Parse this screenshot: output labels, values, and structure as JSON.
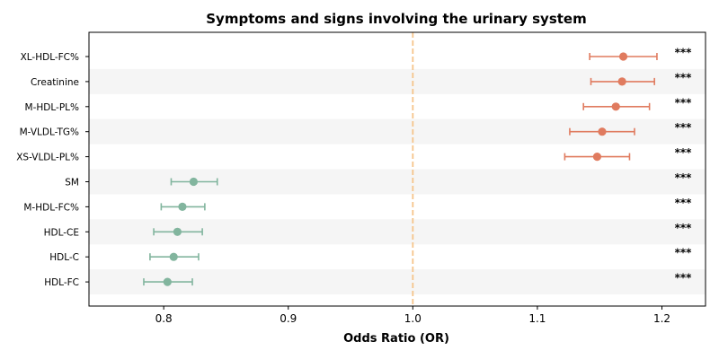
{
  "chart_data": {
    "type": "forest",
    "title": "Symptoms and signs involving the urinary system",
    "xlabel": "Odds Ratio (OR)",
    "ylabel": "",
    "xlim": [
      0.74,
      1.235
    ],
    "x_ticks": [
      0.8,
      0.9,
      1.0,
      1.1,
      1.2
    ],
    "x_tick_labels": [
      "0.8",
      "0.9",
      "1.0",
      "1.1",
      "1.2"
    ],
    "reference_line": 1.0,
    "grid": false,
    "colors": {
      "increased_risk": "#e07b5f",
      "decreased_risk": "#82b59e",
      "reference_line": "#f5c48a",
      "row_band": "#f5f5f5"
    },
    "categories": [
      "XL-HDL-FC%",
      "Creatinine",
      "M-HDL-PL%",
      "M-VLDL-TG%",
      "XS-VLDL-PL%",
      "SM",
      "M-HDL-FC%",
      "HDL-CE",
      "HDL-C",
      "HDL-FC"
    ],
    "or": [
      1.169,
      1.168,
      1.163,
      1.152,
      1.148,
      0.824,
      0.815,
      0.811,
      0.808,
      0.803
    ],
    "ci_low": [
      1.142,
      1.143,
      1.137,
      1.126,
      1.122,
      0.806,
      0.798,
      0.792,
      0.789,
      0.784
    ],
    "ci_high": [
      1.196,
      1.194,
      1.19,
      1.178,
      1.174,
      0.843,
      0.833,
      0.831,
      0.828,
      0.823
    ],
    "significance": [
      "***",
      "***",
      "***",
      "***",
      "***",
      "***",
      "***",
      "***",
      "***",
      "***"
    ]
  }
}
